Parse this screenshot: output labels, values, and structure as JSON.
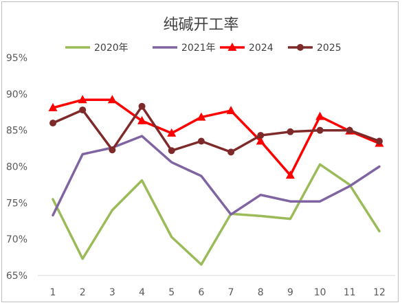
{
  "chart_data": {
    "type": "line",
    "title": "纯碱开工率",
    "categories": [
      "1",
      "2",
      "3",
      "4",
      "5",
      "6",
      "7",
      "8",
      "9",
      "10",
      "11",
      "12"
    ],
    "ylim": [
      0.65,
      0.95
    ],
    "yticks": [
      "65%",
      "70%",
      "75%",
      "80%",
      "85%",
      "90%",
      "95%"
    ],
    "grid": false,
    "legend": "top",
    "series": [
      {
        "name": "2020年",
        "color": "#9bbb59",
        "marker": "none",
        "values": [
          75.5,
          67.3,
          74.0,
          78.1,
          70.3,
          66.5,
          73.5,
          73.2,
          72.8,
          80.3,
          77.5,
          71.1
        ]
      },
      {
        "name": "2021年",
        "color": "#8064a2",
        "marker": "none",
        "values": [
          73.3,
          81.7,
          82.6,
          84.2,
          80.6,
          78.7,
          73.4,
          76.1,
          75.2,
          75.2,
          77.3,
          80.0
        ]
      },
      {
        "name": "2024",
        "color": "#ff0000",
        "marker": "triangle",
        "values": [
          88.1,
          89.2,
          89.2,
          86.3,
          84.6,
          86.8,
          87.7,
          83.5,
          78.8,
          86.9,
          84.9,
          83.2
        ]
      },
      {
        "name": "2025",
        "color": "#7f2a2a",
        "marker": "circle",
        "values": [
          86.0,
          87.8,
          82.3,
          88.3,
          82.2,
          83.5,
          82.0,
          84.3,
          84.8,
          85.0,
          85.0,
          83.5
        ]
      }
    ]
  }
}
